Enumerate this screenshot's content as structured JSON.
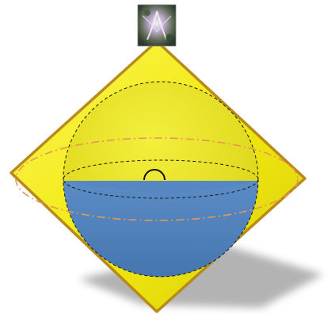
{
  "figure": {
    "elements": [
      "photo-thumbnail",
      "yellow-diamond",
      "yellow-sphere",
      "blue-hemisphere",
      "equator-ellipse",
      "small-semicircle",
      "dash-dot-ellipse",
      "drop-shadow"
    ],
    "colors": {
      "diamond_fill": "#f2ea10",
      "diamond_border": "#b88a1c",
      "sphere_fill": "#e8e21a",
      "hemisphere_fill": "#4f81bd",
      "dashed_line": "#1a1a1a",
      "dash_dot_line": "#e8955a",
      "shadow": "#9a9a9a"
    }
  }
}
